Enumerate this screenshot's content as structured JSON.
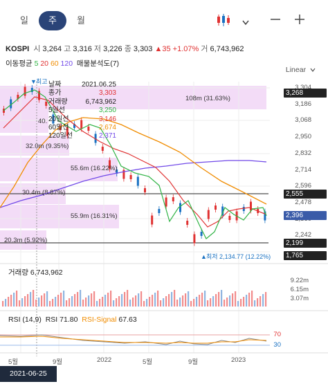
{
  "tabs": [
    {
      "label": "일"
    },
    {
      "label": "주"
    },
    {
      "label": "월"
    }
  ],
  "icons": {
    "candle": "candle-chart-icon",
    "dropdown": "chevron-down-icon",
    "minus": "zoom-out-icon",
    "plus": "zoom-in-icon"
  },
  "info": {
    "name": "KOSPI",
    "open_label": "시",
    "open": "3,264",
    "high_label": "고",
    "high": "3,316",
    "low_label": "저",
    "low": "3,226",
    "close_label": "종",
    "close": "3,303",
    "change": "▲35",
    "change_pct": "+1.07%",
    "volume_label": "거",
    "volume": "6,743,962"
  },
  "ma_row": {
    "label": "이동평균",
    "p5": "5",
    "p20": "20",
    "p60": "60",
    "p120": "120",
    "profile": "매물분석도(7)"
  },
  "scale_mode": "Linear",
  "colors": {
    "up": "#e03131",
    "down": "#1971c2",
    "ma5": "#2fb344",
    "ma20": "#e03131",
    "ma60": "#f08c00",
    "ma120": "#7048e8",
    "band": "#f3dcf7",
    "last": "#3a5ba8",
    "ref": "#222222"
  },
  "y_ticks": [
    "3,304",
    "3,186",
    "3,068",
    "2,950",
    "2,832",
    "2,714",
    "2,596",
    "2,478",
    "2,360",
    "2,242"
  ],
  "price_tags": {
    "p1": "3,268",
    "p2": "2,555",
    "p3": "2,396",
    "p4": "2,199",
    "p5": "1,765"
  },
  "bands": [
    {
      "label": "108m (31.63%)"
    },
    {
      "label": "40."
    },
    {
      "label": "32.0m (9.35%)"
    },
    {
      "label": "55.6m (16.22%)"
    },
    {
      "label": "30.4m (8.87%)"
    },
    {
      "label": "55.9m (16.31%)"
    },
    {
      "label": "20.3m (5.92%)"
    }
  ],
  "markers": {
    "high": "최고",
    "low": "최저 2,134.77 (12.22%)"
  },
  "tooltip": {
    "rows": [
      {
        "k": "날짜",
        "v": "2021.06.25",
        "c": "#222"
      },
      {
        "k": "종가",
        "v": "3,303",
        "c": "#e03131"
      },
      {
        "k": "거래량",
        "v": "6,743,962",
        "c": "#222"
      },
      {
        "k": "5일선",
        "v": "3,250",
        "c": "#2fb344"
      },
      {
        "k": "20일선",
        "v": "3,146",
        "c": "#e03131"
      },
      {
        "k": "60일선",
        "v": "2,674",
        "c": "#f08c00"
      },
      {
        "k": "120일선",
        "v": "2,371",
        "c": "#7048e8"
      }
    ]
  },
  "volume": {
    "label": "거래량",
    "value": "6,743,962",
    "ticks": [
      "9.22m",
      "6.15m",
      "3.07m"
    ]
  },
  "rsi": {
    "label": "RSI (14,9)",
    "rsi_label": "RSI",
    "rsi_value": "71.80",
    "signal_label": "RSI-Signal",
    "signal_value": "67.63",
    "level_high": "70",
    "level_low": "30"
  },
  "x_ticks": [
    "5월",
    "9월",
    "2022",
    "5월",
    "9월",
    "2023"
  ],
  "selected_date": "2021-06-25"
}
